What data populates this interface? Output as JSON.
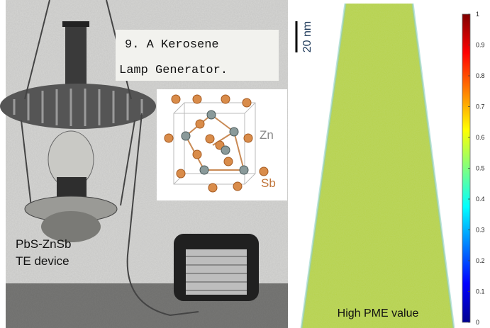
{
  "photo": {
    "caption_line1": "9. A Kerosene",
    "caption_line2": "Lamp Generator.",
    "device_line1": "PbS-ZnSb",
    "device_line2": "TE device"
  },
  "crystal": {
    "label_zn": "Zn",
    "label_sb": "Sb"
  },
  "reconstruction": {
    "scale_bar": "20 nm",
    "label": "High PME value"
  },
  "colorbar": {
    "lim": [
      0,
      1
    ],
    "ticks": [
      0,
      0.1,
      0.2,
      0.3,
      0.4,
      0.5,
      0.6,
      0.7,
      0.8,
      0.9,
      1
    ]
  }
}
